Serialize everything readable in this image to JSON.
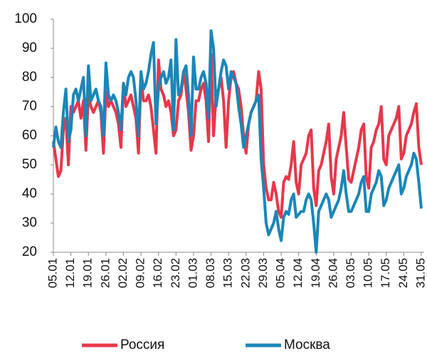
{
  "chart_data": {
    "type": "line",
    "categories": [
      "05.01",
      null,
      null,
      null,
      null,
      null,
      null,
      "12.01",
      null,
      null,
      null,
      null,
      null,
      null,
      "19.01",
      null,
      null,
      null,
      null,
      null,
      null,
      "26.01",
      null,
      null,
      null,
      null,
      null,
      null,
      "02.02",
      null,
      null,
      null,
      null,
      null,
      null,
      "09.02",
      null,
      null,
      null,
      null,
      null,
      null,
      "16.02",
      null,
      null,
      null,
      null,
      null,
      null,
      "23.02",
      null,
      null,
      null,
      null,
      null,
      null,
      "01.03",
      null,
      null,
      null,
      null,
      null,
      null,
      "08.03",
      null,
      null,
      null,
      null,
      null,
      null,
      "15.03",
      null,
      null,
      null,
      null,
      null,
      null,
      "22.03",
      null,
      null,
      null,
      null,
      null,
      null,
      "29.03",
      null,
      null,
      null,
      null,
      null,
      null,
      "05.04",
      null,
      null,
      null,
      null,
      null,
      null,
      "12.04",
      null,
      null,
      null,
      null,
      null,
      null,
      "19.04",
      null,
      null,
      null,
      null,
      null,
      null,
      "26.04",
      null,
      null,
      null,
      null,
      null,
      null,
      "03.05",
      null,
      null,
      null,
      null,
      null,
      null,
      "10.05",
      null,
      null,
      null,
      null,
      null,
      null,
      "17.05",
      null,
      null,
      null,
      null,
      null,
      null,
      "24.05",
      null,
      null,
      null,
      null,
      null,
      null,
      "31.05"
    ],
    "series": [
      {
        "name": "Россия",
        "color": "#e8374a",
        "values": [
          58,
          52,
          46,
          48,
          62,
          66,
          50,
          70,
          68,
          70,
          72,
          66,
          72,
          55,
          74,
          70,
          68,
          70,
          72,
          68,
          54,
          75,
          70,
          72,
          70,
          68,
          64,
          56,
          78,
          70,
          72,
          74,
          70,
          66,
          54,
          80,
          72,
          72,
          74,
          70,
          62,
          54,
          86,
          76,
          74,
          70,
          72,
          68,
          60,
          62,
          72,
          74,
          82,
          76,
          68,
          55,
          60,
          72,
          72,
          76,
          78,
          72,
          58,
          88,
          60,
          74,
          76,
          80,
          72,
          56,
          72,
          80,
          82,
          78,
          76,
          70,
          60,
          54,
          64,
          68,
          70,
          72,
          82,
          76,
          50,
          42,
          38,
          38,
          44,
          40,
          34,
          32,
          44,
          46,
          45,
          50,
          58,
          44,
          40,
          50,
          52,
          54,
          60,
          62,
          42,
          36,
          48,
          50,
          54,
          58,
          64,
          46,
          40,
          52,
          56,
          60,
          68,
          56,
          45,
          44,
          48,
          52,
          56,
          62,
          64,
          46,
          42,
          56,
          58,
          62,
          64,
          70,
          52,
          50,
          60,
          62,
          64,
          66,
          70,
          52,
          54,
          60,
          62,
          64,
          68,
          71,
          56,
          50
        ]
      },
      {
        "name": "Москва",
        "color": "#1a86b8",
        "values": [
          56,
          63,
          58,
          56,
          68,
          76,
          58,
          62,
          74,
          76,
          72,
          76,
          80,
          60,
          84,
          72,
          74,
          76,
          72,
          70,
          60,
          85,
          74,
          72,
          74,
          72,
          68,
          62,
          78,
          74,
          80,
          82,
          80,
          72,
          60,
          82,
          76,
          78,
          82,
          88,
          92,
          64,
          76,
          80,
          82,
          78,
          80,
          86,
          62,
          93,
          74,
          76,
          82,
          84,
          74,
          60,
          87,
          76,
          76,
          80,
          82,
          78,
          66,
          96,
          90,
          70,
          76,
          82,
          86,
          84,
          76,
          82,
          80,
          78,
          70,
          64,
          56,
          60,
          64,
          68,
          70,
          72,
          74,
          52,
          42,
          30,
          26,
          28,
          30,
          34,
          28,
          24,
          32,
          34,
          33,
          38,
          40,
          32,
          33,
          34,
          34,
          38,
          40,
          38,
          30,
          20,
          34,
          36,
          38,
          40,
          38,
          32,
          34,
          36,
          38,
          42,
          48,
          40,
          34,
          34,
          36,
          38,
          40,
          44,
          46,
          34,
          34,
          40,
          42,
          44,
          48,
          46,
          36,
          38,
          42,
          44,
          46,
          48,
          50,
          40,
          42,
          46,
          48,
          50,
          54,
          52,
          44,
          35
        ]
      }
    ],
    "ylim": [
      20,
      100
    ],
    "yticks": [
      20,
      30,
      40,
      50,
      60,
      70,
      80,
      90,
      100
    ],
    "grid": false
  }
}
